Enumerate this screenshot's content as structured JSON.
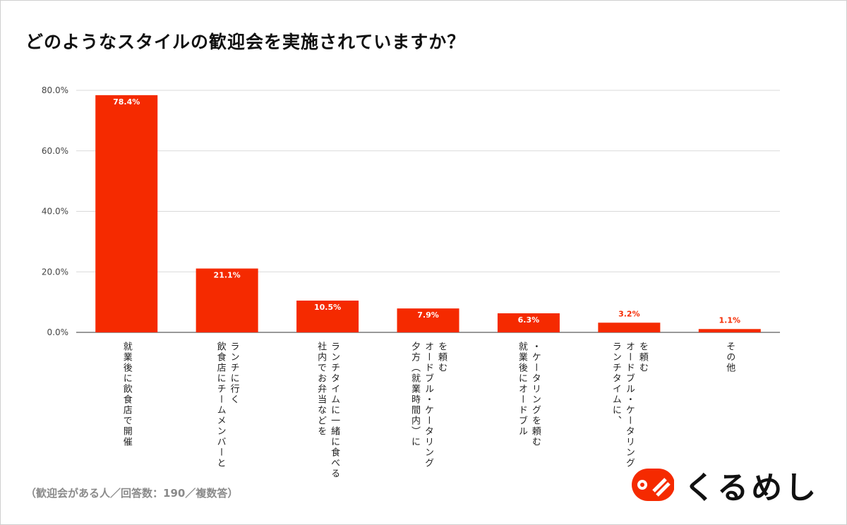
{
  "title": "どのようなスタイルの歓迎会を実施されていますか？",
  "note": "（歓迎会がある人／回答数：190／複数答）",
  "logo": {
    "text": "くるめし",
    "color": "#f52a00"
  },
  "colors": {
    "bar": "#f52a00",
    "grid": "#d9d9d9",
    "label_inside": "#ffffff",
    "label_outside": "#f52a00"
  },
  "chart_data": {
    "type": "bar",
    "categories": [
      "就業後に飲食店で開催",
      "ランチに行く\n飲食店にチームメンバーと",
      "ランチタイムに一緒に食べる\n社内でお弁当などを",
      "を頼む\nオードブル・ケータリング\n夕方（就業時間内）に",
      "・ケータリングを頼む\n就業後にオードブル",
      "を頼む\nオードブル・ケータリング\nランチタイムに、",
      "その他"
    ],
    "values": [
      78.4,
      21.1,
      10.5,
      7.9,
      6.3,
      3.2,
      1.1
    ],
    "data_labels": [
      "78.4%",
      "21.1%",
      "10.5%",
      "7.9%",
      "6.3%",
      "3.2%",
      "1.1%"
    ],
    "yticks": [
      "0.0%",
      "20.0%",
      "40.0%",
      "60.0%",
      "80.0%"
    ],
    "ytick_values": [
      0,
      20,
      40,
      60,
      80
    ],
    "ylim": [
      0,
      80
    ],
    "grid": true,
    "legend": "none"
  }
}
